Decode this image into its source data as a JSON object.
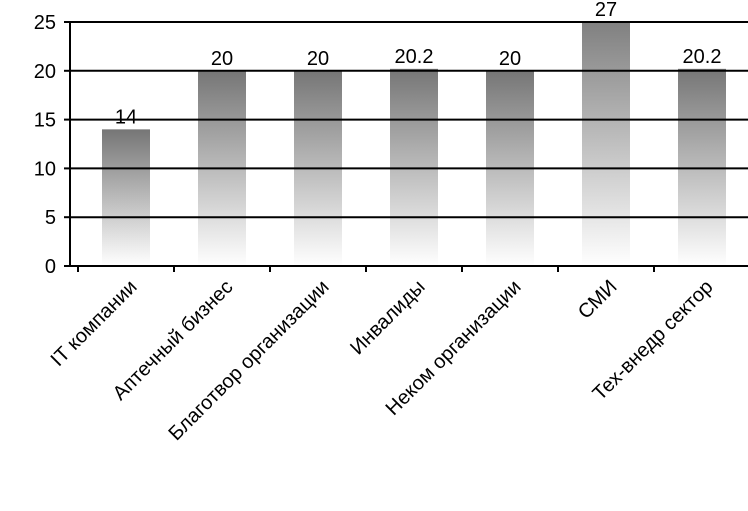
{
  "chart_data": {
    "type": "bar",
    "categories": [
      "IT компании",
      "Аптечный бизнес",
      "Благотвор организации",
      "Инвалиды",
      "Неком организации",
      "СМИ",
      "Тех-внедр сектор"
    ],
    "values": [
      14,
      20,
      20,
      20.2,
      20,
      27,
      20.2
    ],
    "color": "#767676",
    "ylim": [
      0,
      25
    ],
    "yticks": [
      0,
      5,
      10,
      15,
      20,
      25
    ],
    "grid": true
  }
}
